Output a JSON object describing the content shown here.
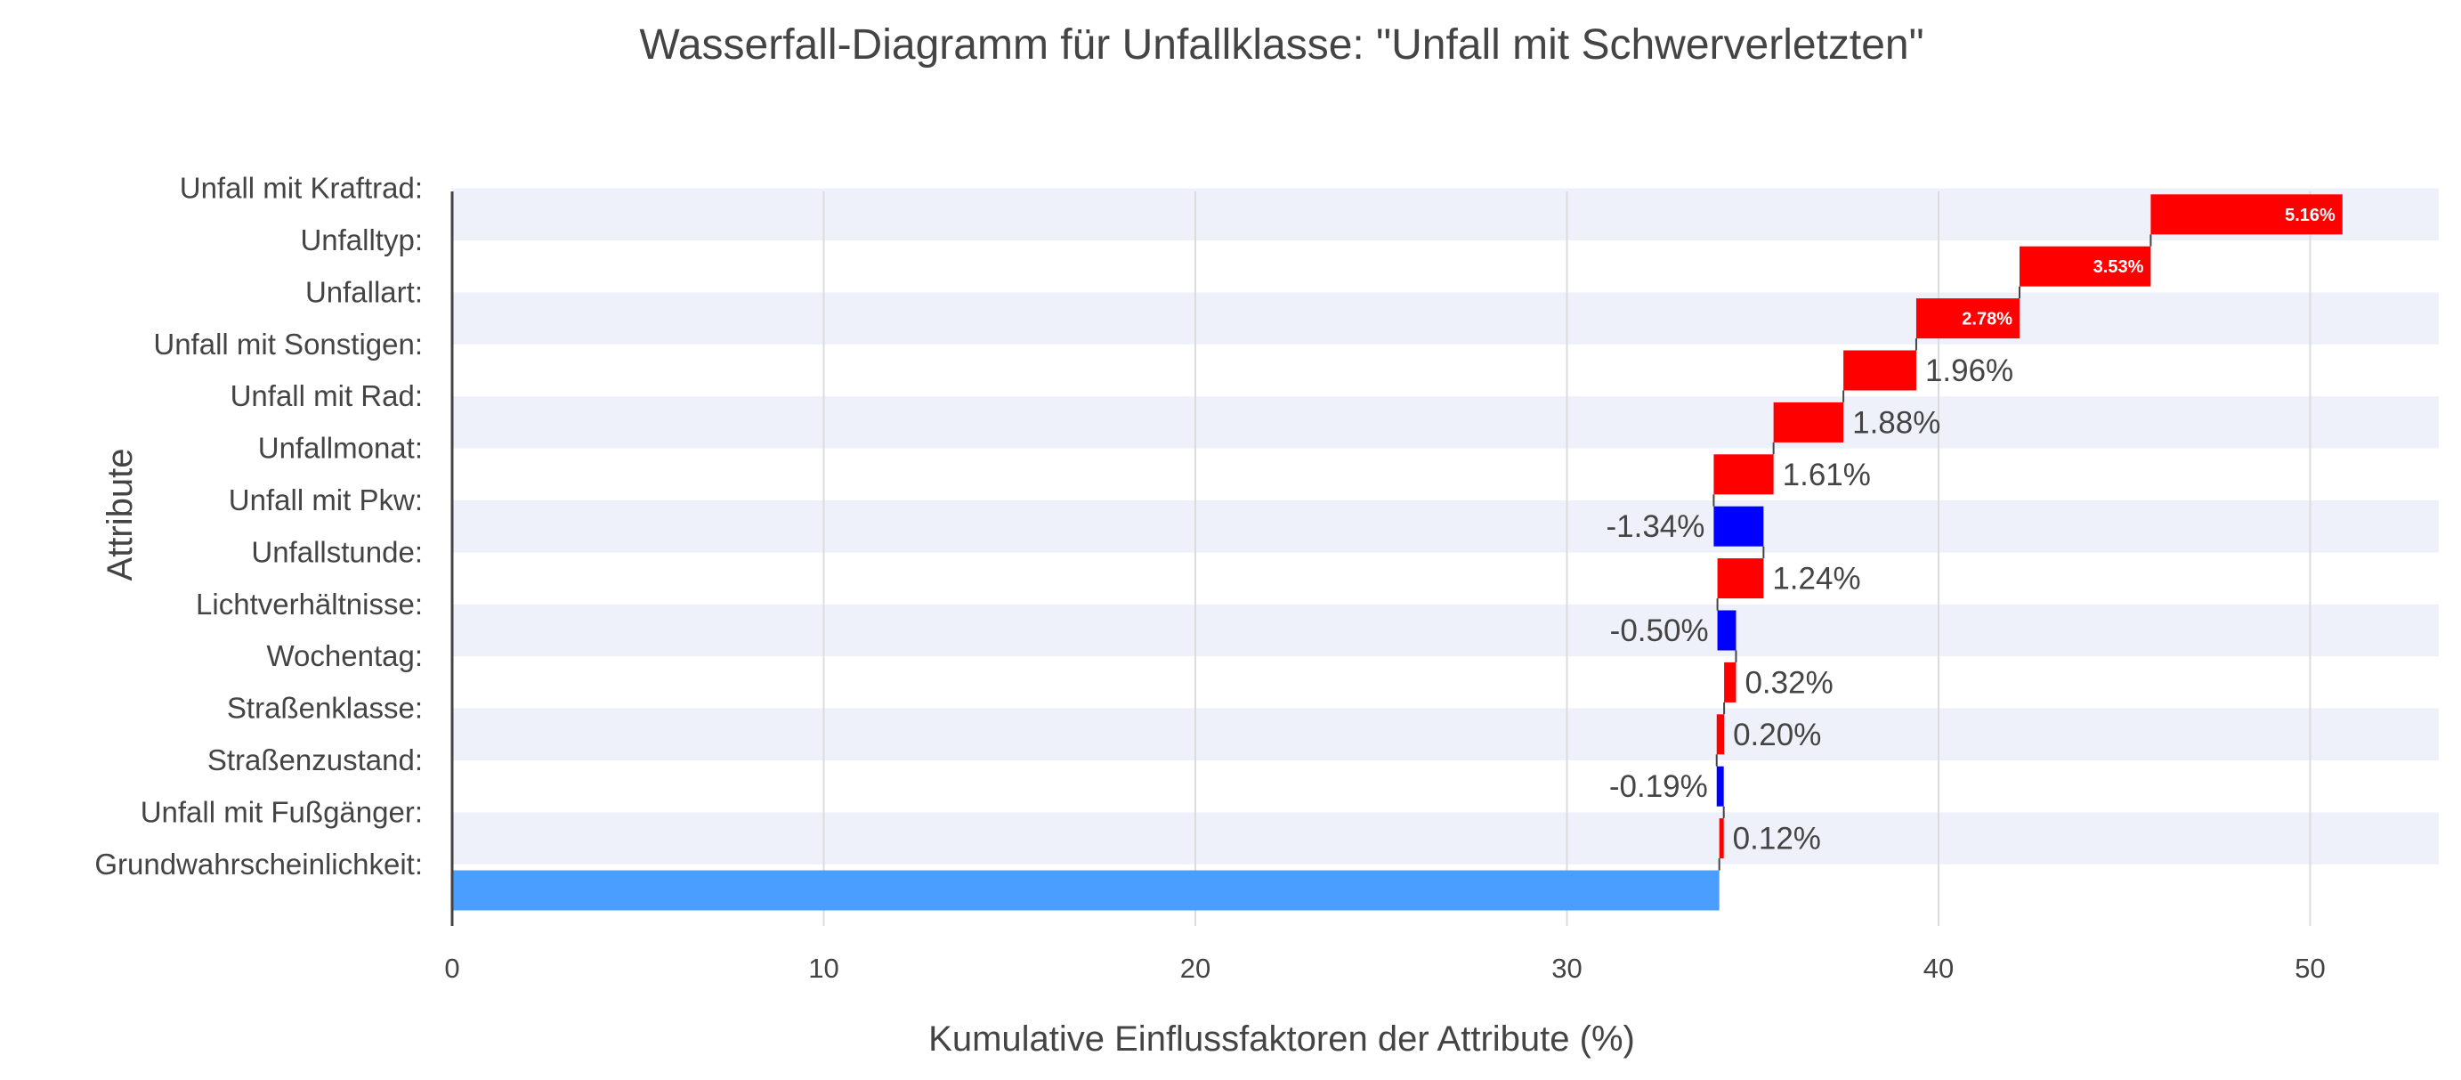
{
  "chart_data": {
    "type": "waterfall",
    "orientation": "horizontal",
    "title": "Wasserfall-Diagramm für Unfallklasse: \"Unfall mit Schwerverletzten\"",
    "xlabel": "Kumulative Einflussfaktoren der Attribute (%)",
    "ylabel": "Attribute",
    "xlim": [
      0,
      53.5
    ],
    "xticks": [
      0,
      10,
      20,
      30,
      40,
      50
    ],
    "base": {
      "category": "Grundwahrscheinlichkeit:",
      "value": 34.1
    },
    "steps": [
      {
        "category": "Unfall mit Fußgänger:",
        "value": 0.12,
        "label": "0.12%"
      },
      {
        "category": "Straßenzustand:",
        "value": -0.19,
        "label": "-0.19%"
      },
      {
        "category": "Straßenklasse:",
        "value": 0.2,
        "label": "0.20%"
      },
      {
        "category": "Wochentag:",
        "value": 0.32,
        "label": "0.32%"
      },
      {
        "category": "Lichtverhältnisse:",
        "value": -0.5,
        "label": "-0.50%"
      },
      {
        "category": "Unfallstunde:",
        "value": 1.24,
        "label": "1.24%"
      },
      {
        "category": "Unfall mit Pkw:",
        "value": -1.34,
        "label": "-1.34%"
      },
      {
        "category": "Unfallmonat:",
        "value": 1.61,
        "label": "1.61%"
      },
      {
        "category": "Unfall mit Rad:",
        "value": 1.88,
        "label": "1.88%"
      },
      {
        "category": "Unfall mit Sonstigen:",
        "value": 1.96,
        "label": "1.96%"
      },
      {
        "category": "Unfallart:",
        "value": 2.78,
        "label": "2.78%"
      },
      {
        "category": "Unfalltyp:",
        "value": 3.53,
        "label": "3.53%"
      },
      {
        "category": "Unfall mit Kraftrad:",
        "value": 5.16,
        "label": "5.16%"
      }
    ],
    "colors": {
      "increase": "#ff0000",
      "decrease": "#0000ff",
      "base": "#4a9eff",
      "stripe": "#eef0fa",
      "grid": "#dcdcdc",
      "connector": "#444444"
    }
  }
}
